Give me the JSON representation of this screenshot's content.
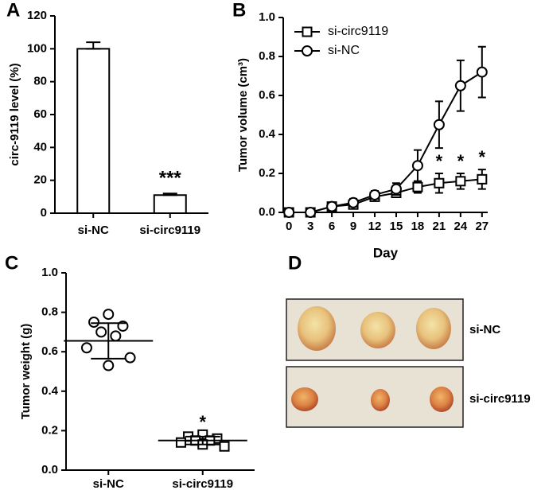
{
  "chart_data": [
    {
      "type": "bar",
      "panel_label": "A",
      "y_label": "circ-9119 level (%)",
      "categories": [
        "si-NC",
        "si-circ9119"
      ],
      "values": [
        100,
        11
      ],
      "errors": [
        4,
        1
      ],
      "color": "#ffffff",
      "ylim": [
        0,
        120
      ],
      "yticks": [
        0,
        20,
        40,
        60,
        80,
        100,
        120
      ],
      "annotations": [
        {
          "text": "***",
          "category": "si-circ9119"
        }
      ]
    },
    {
      "type": "line",
      "panel_label": "B",
      "x_label": "Day",
      "y_label": "Tumor volume (cm³)",
      "x": [
        0,
        3,
        6,
        9,
        12,
        15,
        18,
        21,
        24,
        27
      ],
      "series": [
        {
          "name": "si-circ9119",
          "marker": "square",
          "color": "#000000",
          "values": [
            0,
            0,
            0.03,
            0.04,
            0.08,
            0.1,
            0.13,
            0.15,
            0.16,
            0.17
          ],
          "errors": [
            0,
            0,
            0.02,
            0.02,
            0.02,
            0.02,
            0.03,
            0.05,
            0.04,
            0.05
          ]
        },
        {
          "name": "si-NC",
          "marker": "circle",
          "color": "#000000",
          "values": [
            0,
            0,
            0.03,
            0.05,
            0.09,
            0.12,
            0.24,
            0.45,
            0.65,
            0.72
          ],
          "errors": [
            0,
            0,
            0.02,
            0.02,
            0.02,
            0.03,
            0.08,
            0.12,
            0.13,
            0.13
          ]
        }
      ],
      "xlim": [
        -0.8,
        27.8
      ],
      "xticks": [
        0,
        3,
        6,
        9,
        12,
        15,
        18,
        21,
        24,
        27
      ],
      "ylim": [
        0,
        1
      ],
      "yticks": [
        {
          "value": 0,
          "label": "0.0"
        },
        0.2,
        0.4,
        0.6,
        0.8,
        {
          "value": 1,
          "label": "1.0"
        }
      ],
      "legend": "upper left",
      "annotations": [
        {
          "text": "*",
          "x": 21
        },
        {
          "text": "*",
          "x": 24
        },
        {
          "text": "*",
          "x": 27
        }
      ]
    },
    {
      "type": "dotplot",
      "panel_label": "C",
      "y_label": "Tumor weight (g)",
      "groups": [
        {
          "name": "si-NC",
          "marker": "circle",
          "values": [
            0.79,
            0.75,
            0.73,
            0.7,
            0.68,
            0.62,
            0.57,
            0.53
          ],
          "mean": 0.655,
          "sd": 0.09
        },
        {
          "name": "si-circ9119",
          "marker": "square",
          "values": [
            0.18,
            0.17,
            0.16,
            0.15,
            0.15,
            0.14,
            0.12,
            0.13
          ],
          "mean": 0.15,
          "sd": 0.02
        }
      ],
      "ylim": [
        0,
        1
      ],
      "yticks": [
        {
          "value": 0,
          "label": "0.0"
        },
        0.2,
        0.4,
        0.6,
        0.8,
        {
          "value": 1,
          "label": "1.0"
        }
      ],
      "annotations": [
        {
          "text": "*",
          "category": "si-circ9119"
        }
      ]
    }
  ],
  "image_panel": {
    "panel_label": "D",
    "rows": [
      "si-NC",
      "si-circ9119"
    ]
  }
}
